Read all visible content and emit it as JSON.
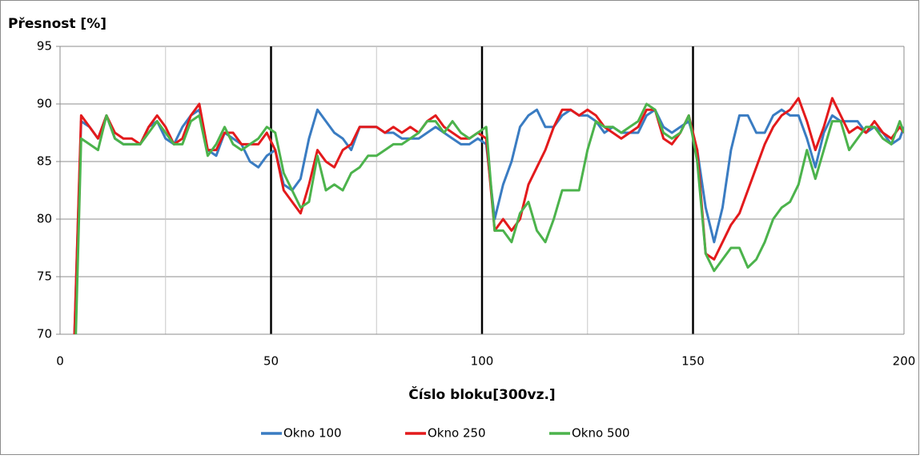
{
  "chart_data": {
    "type": "line",
    "y_label": "Přesnost [%]",
    "x_label": "Číslo bloku[300vz.]",
    "xlim": [
      0,
      200
    ],
    "xticks": [
      0,
      50,
      100,
      150,
      200
    ],
    "ylim": [
      70,
      95
    ],
    "yticks": [
      70,
      75,
      80,
      85,
      90,
      95
    ],
    "grid": true,
    "legend": "bottom",
    "x": [
      3,
      5,
      7,
      9,
      11,
      13,
      15,
      17,
      19,
      21,
      23,
      25,
      27,
      29,
      31,
      33,
      35,
      37,
      39,
      41,
      43,
      45,
      47,
      49,
      51,
      53,
      55,
      57,
      59,
      61,
      63,
      65,
      67,
      69,
      71,
      73,
      75,
      77,
      79,
      81,
      83,
      85,
      87,
      89,
      91,
      93,
      95,
      97,
      99,
      101,
      103,
      105,
      107,
      109,
      111,
      113,
      115,
      117,
      119,
      121,
      123,
      125,
      127,
      129,
      131,
      133,
      135,
      137,
      139,
      141,
      143,
      145,
      147,
      149,
      151,
      153,
      155,
      157,
      159,
      161,
      163,
      165,
      167,
      169,
      171,
      173,
      175,
      177,
      179,
      181,
      183,
      185,
      187,
      189,
      191,
      193,
      195,
      197,
      199,
      200
    ],
    "series": [
      {
        "name": "Okno 100",
        "color": "#3a7cc2",
        "values": [
          65,
          88.5,
          88,
          87,
          89,
          87,
          86.5,
          86.5,
          86.5,
          88,
          88.5,
          87,
          86.5,
          88,
          89,
          89.5,
          86,
          85.5,
          87.5,
          87,
          86.5,
          85,
          84.5,
          85.5,
          86,
          83,
          82.5,
          83.5,
          87,
          89.5,
          88.5,
          87.5,
          87,
          86,
          88,
          88,
          88,
          87.5,
          87.5,
          87,
          87,
          87,
          87.5,
          88,
          87.5,
          87,
          86.5,
          86.5,
          87,
          86.5,
          80,
          83,
          85,
          88,
          89,
          89.5,
          88,
          88,
          89,
          89.5,
          89,
          89,
          88.5,
          87.5,
          88,
          87.5,
          87.5,
          87.5,
          89,
          89.5,
          88,
          87.5,
          88,
          88.5,
          86,
          81,
          78,
          81,
          86,
          89,
          89,
          87.5,
          87.5,
          89,
          89.5,
          89,
          89,
          87,
          84.5,
          87.5,
          89,
          88.5,
          88.5,
          88.5,
          87.5,
          88,
          87.5,
          86.5,
          87,
          88
        ]
      },
      {
        "name": "Okno 250",
        "color": "#e31a1c",
        "values": [
          65,
          89,
          88,
          87,
          89,
          87.5,
          87,
          87,
          86.5,
          88,
          89,
          88,
          86.5,
          87,
          89,
          90,
          86,
          86,
          87.5,
          87.5,
          86.5,
          86.5,
          86.5,
          87.5,
          86,
          82.5,
          81.5,
          80.5,
          83,
          86,
          85,
          84.5,
          86,
          86.5,
          88,
          88,
          88,
          87.5,
          88,
          87.5,
          88,
          87.5,
          88.5,
          89,
          88,
          87.5,
          87,
          87,
          87.5,
          87,
          79,
          80,
          79,
          80,
          83,
          84.5,
          86,
          88,
          89.5,
          89.5,
          89,
          89.5,
          89,
          88,
          87.5,
          87,
          87.5,
          88,
          89.5,
          89.5,
          87,
          86.5,
          87.5,
          89,
          86,
          77,
          76.5,
          78,
          79.5,
          80.5,
          82.5,
          84.5,
          86.5,
          88,
          89,
          89.5,
          90.5,
          88.5,
          86,
          88,
          90.5,
          89,
          87.5,
          88,
          87.5,
          88.5,
          87.5,
          87,
          88,
          87.5
        ]
      },
      {
        "name": "Okno 500",
        "color": "#4cb34c",
        "values": [
          60,
          87,
          86.5,
          86,
          89,
          87,
          86.5,
          86.5,
          86.5,
          87.5,
          88.5,
          87.5,
          86.5,
          86.5,
          88.5,
          89,
          85.5,
          86.5,
          88,
          86.5,
          86,
          86.5,
          87,
          88,
          87.5,
          84,
          82.5,
          81,
          81.5,
          85.5,
          82.5,
          83,
          82.5,
          84,
          84.5,
          85.5,
          85.5,
          86,
          86.5,
          86.5,
          87,
          87.5,
          88.5,
          88.5,
          87.5,
          88.5,
          87.5,
          87,
          87.5,
          88,
          79,
          79,
          78,
          80.5,
          81.5,
          79,
          78,
          80,
          82.5,
          82.5,
          82.5,
          86,
          88.5,
          88,
          88,
          87.5,
          88,
          88.5,
          90,
          89.5,
          87.5,
          87,
          87.5,
          89,
          85,
          77,
          75.5,
          76.5,
          77.5,
          77.5,
          75.8,
          76.5,
          78,
          80,
          81,
          81.5,
          83,
          86,
          83.5,
          86,
          88.5,
          88.5,
          86,
          87,
          88,
          88,
          87,
          86.5,
          88.5,
          87.5
        ]
      }
    ]
  }
}
